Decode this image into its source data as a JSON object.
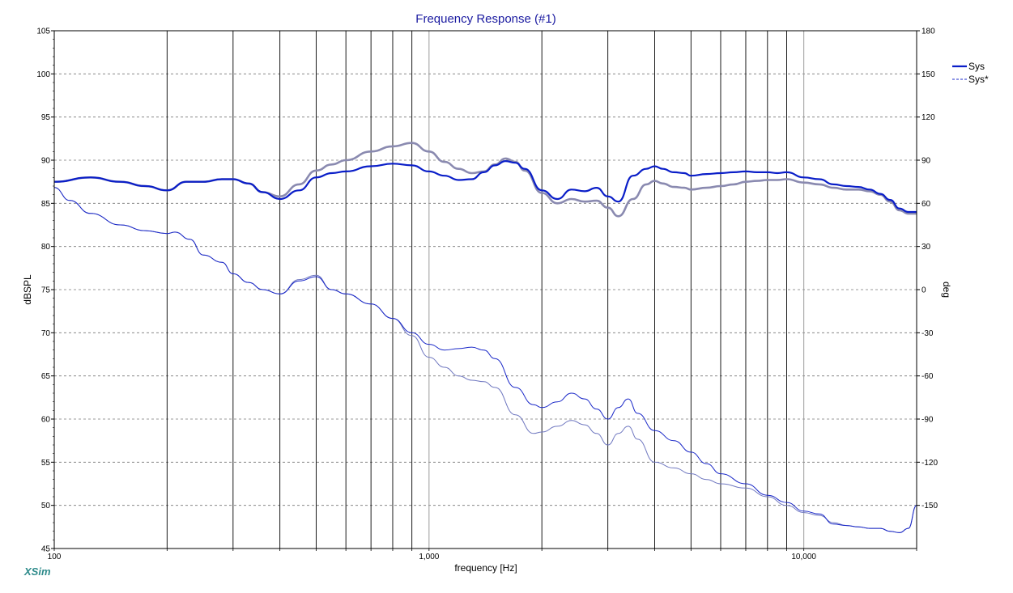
{
  "brand": "XSim",
  "chart_data": {
    "type": "line",
    "title": "Frequency Response (#1)",
    "xlabel": "frequency [Hz]",
    "ylabel_left": "dBSPL",
    "ylabel_right": "deg",
    "x_scale": "log",
    "xlim": [
      100,
      20000
    ],
    "ylim_left": [
      45,
      105
    ],
    "ylim_right": [
      -180,
      180
    ],
    "x_tick_labels": [
      {
        "value": 100,
        "label": "100"
      },
      {
        "value": 1000,
        "label": "1,000"
      },
      {
        "value": 10000,
        "label": "10,000"
      }
    ],
    "y_left_ticks": [
      105,
      100,
      95,
      90,
      85,
      80,
      75,
      70,
      65,
      60,
      55,
      50,
      45
    ],
    "y_right_ticks": [
      180,
      150,
      120,
      90,
      60,
      30,
      0,
      -30,
      -60,
      -90,
      -120,
      -150
    ],
    "grid": true,
    "legend_position": "top-right",
    "legend": [
      {
        "name": "Sys",
        "style": "solid"
      },
      {
        "name": "Sys*",
        "style": "dashed"
      }
    ],
    "colors": {
      "sys": "#0a1ec8",
      "sys_ref": "#8a8ab0",
      "phase": "#1a28c8",
      "phase_ref": "#7078c0",
      "title": "#1a1aa0"
    },
    "series": [
      {
        "name": "Sys",
        "axis": "left",
        "x": [
          100,
          125,
          150,
          175,
          200,
          225,
          250,
          280,
          300,
          330,
          360,
          400,
          450,
          500,
          550,
          600,
          700,
          800,
          900,
          1000,
          1100,
          1200,
          1300,
          1400,
          1500,
          1600,
          1700,
          1800,
          2000,
          2200,
          2400,
          2600,
          2800,
          3000,
          3200,
          3500,
          3800,
          4000,
          4200,
          4500,
          4800,
          5000,
          5500,
          6000,
          6500,
          7000,
          7500,
          8000,
          8500,
          9000,
          10000,
          11000,
          12000,
          13000,
          14000,
          15000,
          16000,
          17000,
          18000,
          19000,
          20000
        ],
        "y": [
          87.5,
          88.0,
          87.5,
          87.0,
          86.5,
          87.5,
          87.5,
          87.8,
          87.8,
          87.3,
          86.3,
          85.5,
          86.5,
          88.0,
          88.5,
          88.7,
          89.3,
          89.6,
          89.4,
          88.7,
          88.2,
          87.7,
          87.8,
          88.6,
          89.4,
          89.9,
          89.7,
          89.0,
          86.5,
          85.5,
          86.6,
          86.4,
          86.8,
          85.8,
          85.2,
          88.2,
          89.0,
          89.3,
          89.0,
          88.6,
          88.5,
          88.2,
          88.4,
          88.5,
          88.6,
          88.7,
          88.6,
          88.6,
          88.5,
          88.6,
          88.0,
          87.8,
          87.2,
          87.0,
          86.9,
          86.6,
          86.1,
          85.4,
          84.4,
          84.0,
          84.0
        ]
      },
      {
        "name": "Sys*",
        "axis": "left",
        "x": [
          100,
          125,
          150,
          175,
          200,
          225,
          250,
          280,
          300,
          330,
          360,
          400,
          450,
          500,
          550,
          600,
          700,
          800,
          900,
          1000,
          1100,
          1200,
          1300,
          1400,
          1500,
          1600,
          1700,
          1800,
          2000,
          2200,
          2400,
          2600,
          2800,
          3000,
          3200,
          3500,
          3800,
          4000,
          4200,
          4500,
          4800,
          5000,
          5500,
          6000,
          6500,
          7000,
          7500,
          8000,
          8500,
          9000,
          10000,
          11000,
          12000,
          13000,
          14000,
          15000,
          16000,
          17000,
          18000,
          19000,
          20000
        ],
        "y": [
          87.5,
          88.0,
          87.5,
          87.0,
          86.5,
          87.5,
          87.5,
          87.8,
          87.8,
          87.3,
          86.3,
          85.8,
          87.2,
          88.8,
          89.5,
          90.0,
          91.0,
          91.6,
          92.0,
          91.0,
          89.8,
          89.0,
          88.5,
          88.7,
          89.5,
          90.2,
          89.8,
          88.8,
          86.2,
          85.0,
          85.5,
          85.2,
          85.3,
          84.5,
          83.5,
          85.5,
          87.2,
          87.6,
          87.3,
          86.9,
          86.8,
          86.6,
          86.8,
          87.0,
          87.2,
          87.5,
          87.6,
          87.7,
          87.7,
          87.8,
          87.4,
          87.2,
          86.8,
          86.6,
          86.6,
          86.4,
          86.0,
          85.2,
          84.2,
          83.8,
          83.8
        ]
      },
      {
        "name": "Sys phase",
        "axis": "right",
        "x": [
          100,
          110,
          125,
          150,
          175,
          200,
          210,
          230,
          250,
          280,
          300,
          330,
          360,
          400,
          450,
          500,
          550,
          600,
          700,
          800,
          900,
          1000,
          1100,
          1200,
          1300,
          1400,
          1500,
          1700,
          1900,
          2000,
          2200,
          2400,
          2600,
          2800,
          3000,
          3200,
          3400,
          3600,
          4000,
          4500,
          5000,
          5500,
          6000,
          7000,
          8000,
          9000,
          10000,
          11000,
          12000,
          13000,
          14000,
          15000,
          16000,
          17000,
          18000,
          19000,
          20000
        ],
        "y": [
          71,
          62,
          53,
          45,
          41,
          39,
          40,
          35,
          24,
          19,
          11,
          5,
          0,
          -3,
          6,
          9,
          0,
          -3,
          -10,
          -20,
          -30,
          -38,
          -42,
          -41,
          -40,
          -42,
          -48,
          -68,
          -80,
          -82,
          -78,
          -72,
          -76,
          -83,
          -90,
          -82,
          -76,
          -86,
          -98,
          -105,
          -113,
          -121,
          -128,
          -135,
          -143,
          -148,
          -154,
          -156,
          -163,
          -164,
          -165,
          -166,
          -166,
          -168,
          -169,
          -166,
          -150
        ]
      },
      {
        "name": "Sys* phase",
        "axis": "right",
        "x": [
          100,
          110,
          125,
          150,
          175,
          200,
          210,
          230,
          250,
          280,
          300,
          330,
          360,
          400,
          450,
          500,
          550,
          600,
          700,
          800,
          900,
          1000,
          1100,
          1200,
          1300,
          1400,
          1500,
          1700,
          1900,
          2000,
          2200,
          2400,
          2600,
          2800,
          3000,
          3200,
          3400,
          3600,
          4000,
          4500,
          5000,
          5500,
          6000,
          7000,
          8000,
          9000,
          10000,
          11000,
          12000,
          13000,
          14000,
          15000,
          16000,
          17000,
          18000,
          19000,
          20000
        ],
        "y": [
          71,
          62,
          53,
          45,
          41,
          39,
          40,
          35,
          24,
          19,
          11,
          5,
          0,
          -3,
          7,
          10,
          0,
          -3,
          -10,
          -20,
          -32,
          -47,
          -54,
          -60,
          -63,
          -64,
          -68,
          -87,
          -100,
          -99,
          -95,
          -91,
          -94,
          -100,
          -108,
          -100,
          -95,
          -104,
          -120,
          -124,
          -128,
          -132,
          -135,
          -138,
          -144,
          -150,
          -155,
          -157,
          -162,
          -164,
          -165,
          -166,
          -166,
          -168,
          -169,
          -166,
          -150
        ]
      }
    ]
  }
}
